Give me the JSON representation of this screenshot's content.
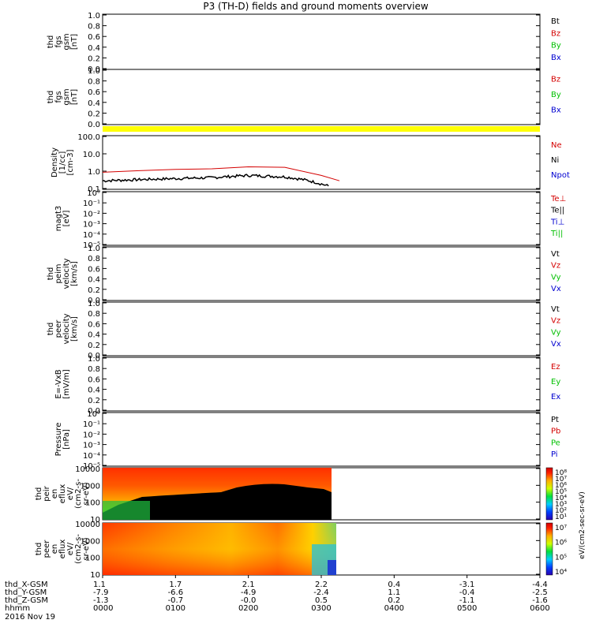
{
  "title": "P3 (TH-D) fields and ground moments overview",
  "panels": [
    {
      "id": "fgs",
      "ylabel": [
        "thd",
        "fgs",
        "gsm",
        "[nT]"
      ],
      "yticks": [
        "0.0",
        "0.2",
        "0.4",
        "0.6",
        "0.8",
        "1.0"
      ],
      "legend": [
        {
          "text": "Bt",
          "color": "#000000"
        },
        {
          "text": "Bz",
          "color": "#d40000"
        },
        {
          "text": "By",
          "color": "#00c000"
        },
        {
          "text": "Bx",
          "color": "#0000d0"
        }
      ]
    },
    {
      "id": "fgs-dsl",
      "ylabel": [
        "thd",
        "fgs",
        "gsm",
        "[nT]"
      ],
      "yticks": [
        "0.0",
        "0.2",
        "0.4",
        "0.6",
        "0.8",
        "1.0"
      ],
      "legend": [
        {
          "text": "Bz",
          "color": "#d40000"
        },
        {
          "text": "By",
          "color": "#00c000"
        },
        {
          "text": "Bx",
          "color": "#0000d0"
        }
      ]
    },
    {
      "id": "density",
      "ylabel": [
        "Density",
        "[1/cc]",
        "[cm-3]"
      ],
      "yticks": [
        "0.1",
        "1.0",
        "10.0",
        "100.0"
      ],
      "legend": [
        {
          "text": "Ne",
          "color": "#d40000"
        },
        {
          "text": "Ni",
          "color": "#000000"
        },
        {
          "text": "Npot",
          "color": "#0000d0"
        }
      ]
    },
    {
      "id": "temp",
      "ylabel": [
        "magt3",
        "[eV]"
      ],
      "yticks": [
        "10⁻⁵",
        "10⁻⁴",
        "10⁻³",
        "10⁻²",
        "10⁻¹",
        "10⁰"
      ],
      "legend": [
        {
          "text": "Te⊥",
          "color": "#d40000"
        },
        {
          "text": "Te||",
          "color": "#000000"
        },
        {
          "text": "Ti⊥",
          "color": "#0000d0"
        },
        {
          "text": "Ti||",
          "color": "#00c000"
        }
      ]
    },
    {
      "id": "peim",
      "ylabel": [
        "thd",
        "peim",
        "velocity",
        "[km/s]"
      ],
      "yticks": [
        "0.0",
        "0.2",
        "0.4",
        "0.6",
        "0.8",
        "1.0"
      ],
      "legend": [
        {
          "text": "Vt",
          "color": "#000000"
        },
        {
          "text": "Vz",
          "color": "#d40000"
        },
        {
          "text": "Vy",
          "color": "#00c000"
        },
        {
          "text": "Vx",
          "color": "#0000d0"
        }
      ]
    },
    {
      "id": "peem",
      "ylabel": [
        "thd",
        "peer",
        "velocity",
        "[km/s]"
      ],
      "yticks": [
        "0.0",
        "0.2",
        "0.4",
        "0.6",
        "0.8",
        "1.0"
      ],
      "legend": [
        {
          "text": "Vt",
          "color": "#000000"
        },
        {
          "text": "Vz",
          "color": "#d40000"
        },
        {
          "text": "Vy",
          "color": "#00c000"
        },
        {
          "text": "Vx",
          "color": "#0000d0"
        }
      ]
    },
    {
      "id": "efield",
      "ylabel": [
        "E=-VxB",
        "[mV/m]"
      ],
      "yticks": [
        "0.0",
        "0.2",
        "0.4",
        "0.6",
        "0.8",
        "1.0"
      ],
      "legend": [
        {
          "text": "Ez",
          "color": "#d40000"
        },
        {
          "text": "Ey",
          "color": "#00c000"
        },
        {
          "text": "Ex",
          "color": "#0000d0"
        }
      ]
    },
    {
      "id": "pressure",
      "ylabel": [
        "Pressure",
        "[nPa]"
      ],
      "yticks": [
        "10⁻⁵",
        "10⁻⁴",
        "10⁻³",
        "10⁻²",
        "10⁻¹",
        "10⁰"
      ],
      "legend": [
        {
          "text": "Pt",
          "color": "#000000"
        },
        {
          "text": "Pb",
          "color": "#d40000"
        },
        {
          "text": "Pe",
          "color": "#00c000"
        },
        {
          "text": "Pi",
          "color": "#0000d0"
        }
      ]
    },
    {
      "id": "peir",
      "ylabel": [
        "thd",
        "peir",
        "en",
        "eflux",
        "eV/",
        "(cm2-s-",
        "sr-eV)"
      ],
      "yticks": [
        "10",
        "100",
        "1000",
        "10000"
      ],
      "cbar_ticks": [
        "10⁸",
        "10⁷",
        "10⁶",
        "10⁵",
        "10⁴",
        "10³",
        "10²",
        "10¹"
      ]
    },
    {
      "id": "peer",
      "ylabel": [
        "thd",
        "peer",
        "en",
        "eflux",
        "eV/",
        "(cm2-s-",
        "sr-eV)"
      ],
      "yticks": [
        "10",
        "100",
        "1000",
        "10000"
      ],
      "cbar_ticks": [
        "10⁷",
        "10⁶",
        "10⁵",
        "10⁴"
      ]
    }
  ],
  "cbar_label": "eV/(cm2-sec-sr-eV)",
  "x_axis": {
    "rows": [
      {
        "label": "thd_X-GSM",
        "values": [
          "1.1",
          "1.7",
          "2.1",
          "2.2",
          "0.4",
          "-3.1",
          "-4.4"
        ]
      },
      {
        "label": "thd_Y-GSM",
        "values": [
          "-7.9",
          "-6.6",
          "-4.9",
          "-2.4",
          "1.1",
          "-0.4",
          "-2.5"
        ]
      },
      {
        "label": "thd_Z-GSM",
        "values": [
          "-1.3",
          "-0.7",
          "-0.0",
          "0.5",
          "0.2",
          "-1.1",
          "-1.6"
        ]
      },
      {
        "label": "hhmm",
        "values": [
          "0000",
          "0100",
          "0200",
          "0300",
          "0400",
          "0500",
          "0600"
        ]
      }
    ],
    "date": "2016 Nov 19"
  },
  "chart_data": {
    "type": "line",
    "title": "P3 (TH-D) fields and ground moments overview",
    "x_unit": "hhmm",
    "x": [
      "0000",
      "0030",
      "0100",
      "0130",
      "0200",
      "0230",
      "0300",
      "0315"
    ],
    "series": [
      {
        "name": "Ne",
        "panel": "density",
        "values": [
          0.9,
          1.1,
          1.3,
          1.4,
          1.8,
          1.7,
          0.6,
          0.3
        ]
      },
      {
        "name": "Ni",
        "panel": "density",
        "values": [
          0.3,
          0.35,
          0.4,
          0.45,
          0.6,
          0.5,
          0.2,
          0.08
        ]
      }
    ],
    "density_ylim": [
      0.1,
      100
    ],
    "density_scale": "log"
  },
  "colors": {
    "ne": "#d40000",
    "ni": "#000000",
    "status_bar": "#ffff00"
  }
}
